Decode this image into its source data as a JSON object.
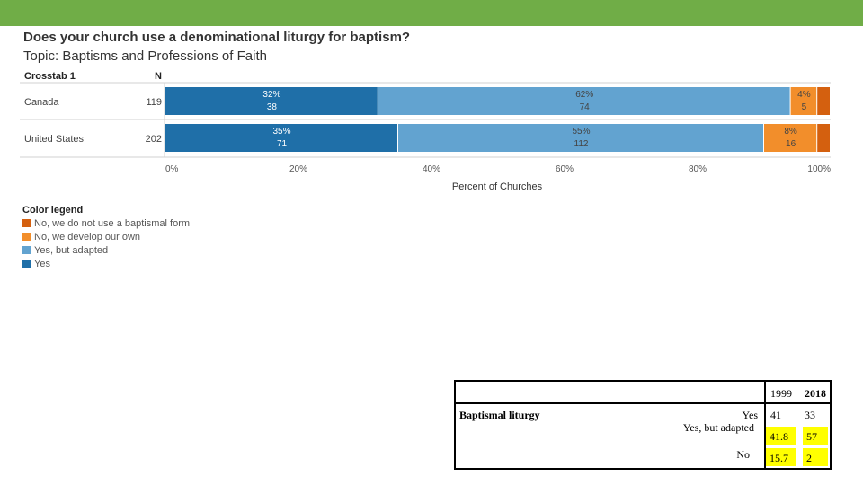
{
  "colors": {
    "topbar": "#70ad47",
    "yes": "#1f6fa8",
    "yes_adapted": "#62a3d0",
    "develop_own": "#f28e2b",
    "no_form": "#d4600f",
    "highlight": "#ffff00"
  },
  "chart_data": {
    "type": "bar",
    "orientation": "horizontal",
    "stacked": true,
    "title": "Does your church use a denominational liturgy for baptism?",
    "subtitle": "Topic: Baptisms and Professions of Faith",
    "row_header": "Crosstab 1",
    "n_header": "N",
    "categories": [
      "Canada",
      "United States"
    ],
    "n": [
      "119",
      "202"
    ],
    "series": [
      {
        "name": "Yes",
        "values": [
          32,
          35
        ],
        "pct_labels": [
          "32%",
          "35%"
        ],
        "count_labels": [
          "38",
          "71"
        ]
      },
      {
        "name": "Yes, but adapted",
        "values": [
          62,
          55
        ],
        "pct_labels": [
          "62%",
          "55%"
        ],
        "count_labels": [
          "74",
          "112"
        ]
      },
      {
        "name": "No, we develop our own",
        "values": [
          4,
          8
        ],
        "pct_labels": [
          "4%",
          "8%"
        ],
        "count_labels": [
          "5",
          "16"
        ]
      },
      {
        "name": "No, we do not use a baptismal form",
        "values": [
          2,
          2
        ],
        "pct_labels": [
          "",
          ""
        ],
        "count_labels": [
          "",
          ""
        ]
      }
    ],
    "xlabel": "Percent of Churches",
    "xlim": [
      0,
      100
    ],
    "xticks": [
      "0%",
      "20%",
      "40%",
      "60%",
      "80%",
      "100%"
    ],
    "legend_title": "Color legend",
    "legend_placement": "bottom-left",
    "legend": [
      "No, we do not use a baptismal form",
      "No, we develop our own",
      "Yes, but adapted",
      "Yes"
    ]
  },
  "table": {
    "year1": "1999",
    "year2": "2018",
    "label": "Baptismal liturgy",
    "rows": [
      {
        "name": "Yes",
        "v1": "41",
        "v2": "33"
      },
      {
        "name": "Yes, but adapted",
        "v1": "41.8",
        "v2": "57"
      },
      {
        "name": "No",
        "v1": "15.7",
        "v2": "2"
      }
    ]
  }
}
